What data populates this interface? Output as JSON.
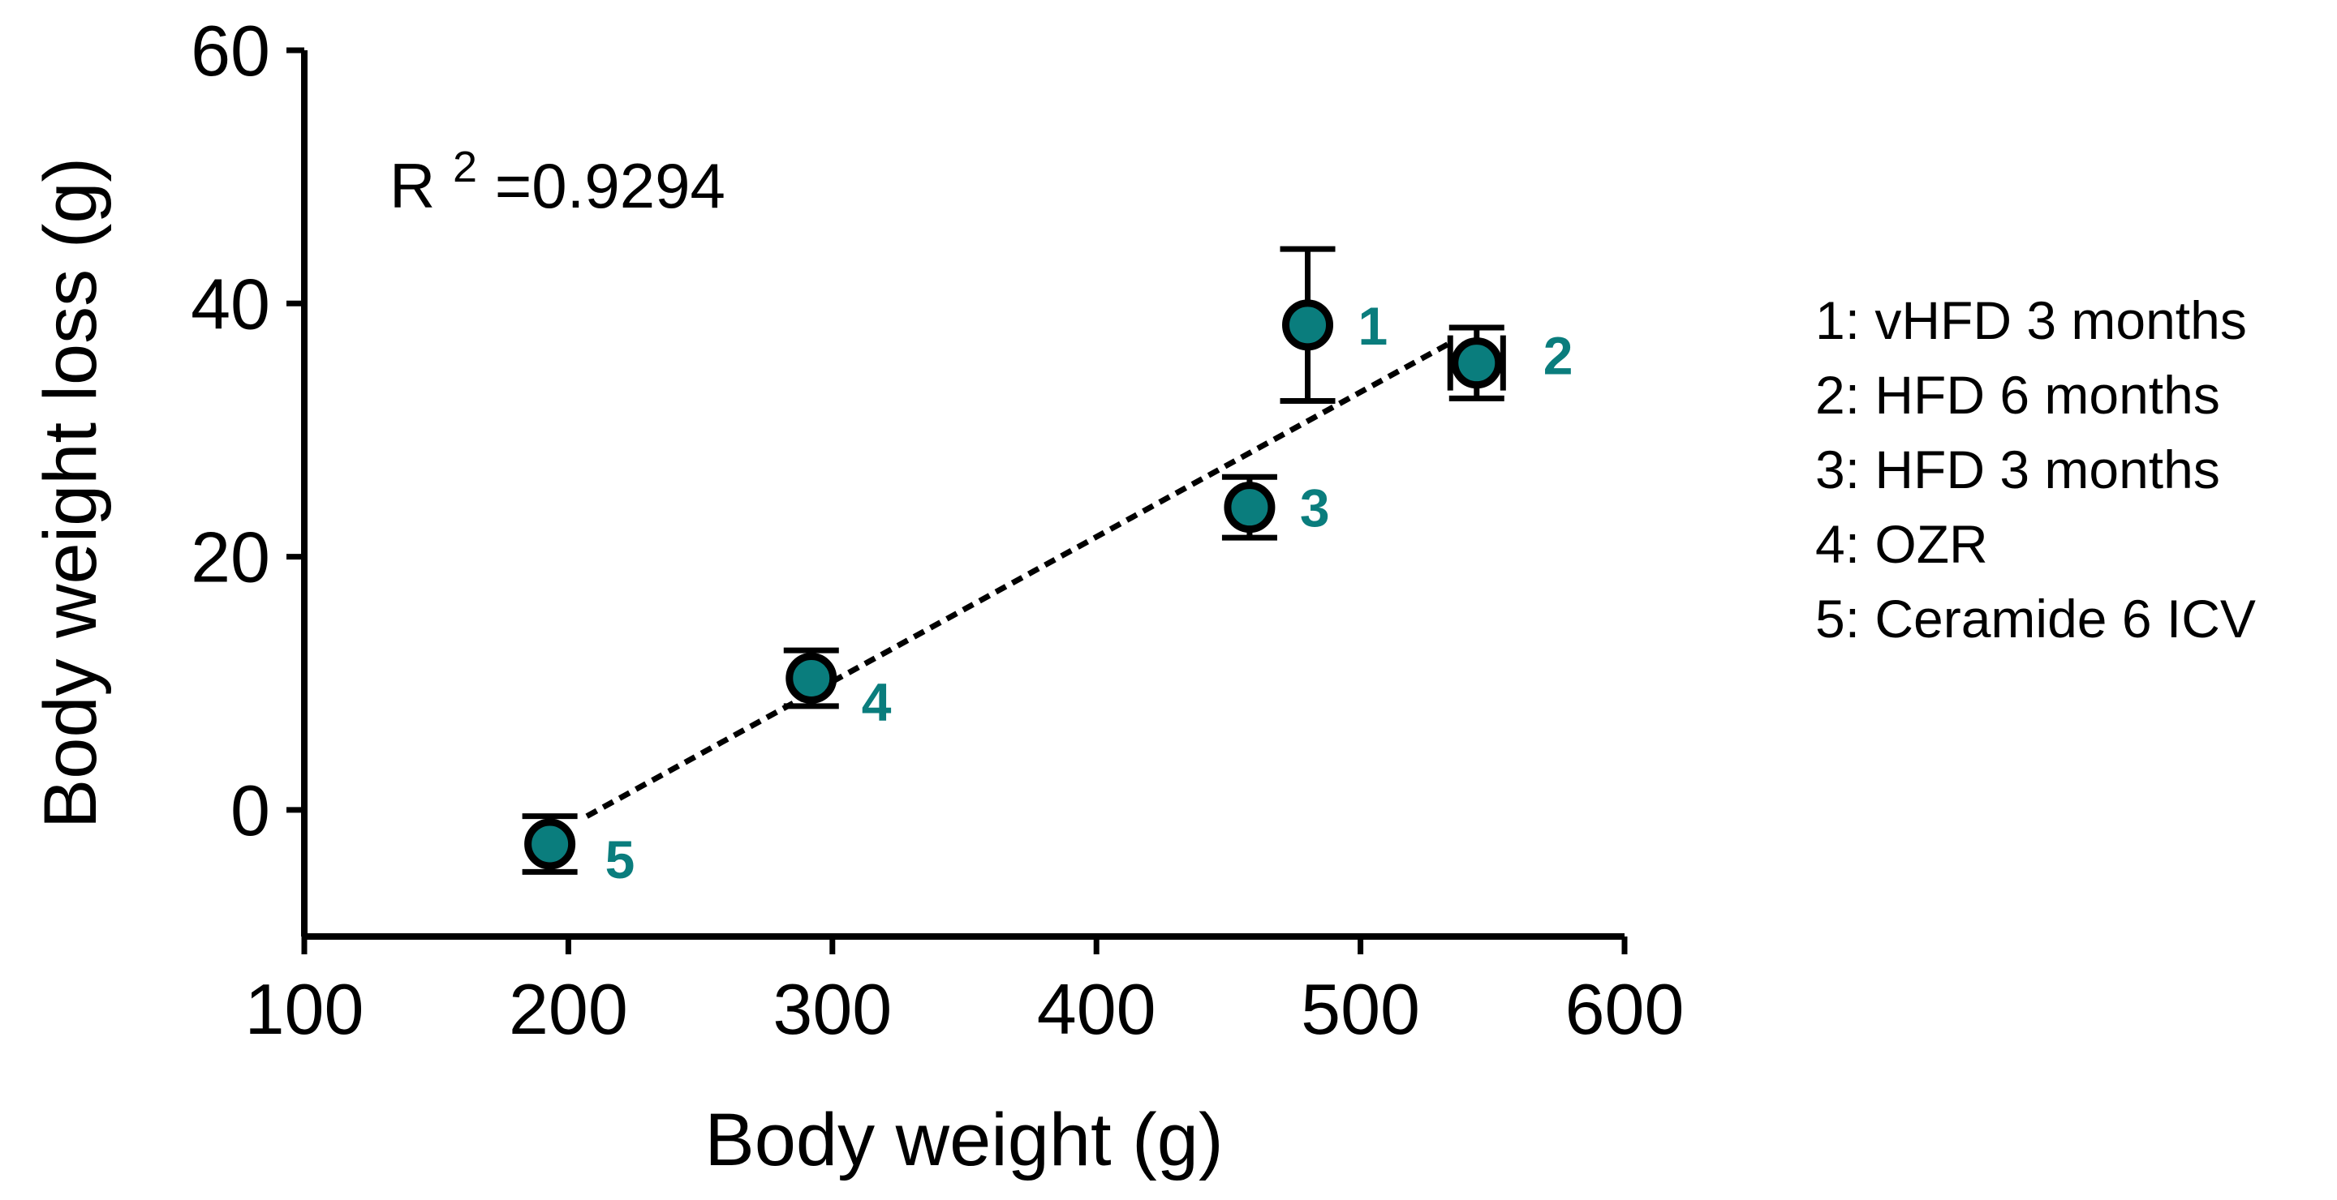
{
  "chart_data": {
    "type": "scatter",
    "xlabel": "Body weight (g)",
    "ylabel": "Body weight loss (g)",
    "xlim": [
      100,
      600
    ],
    "ylim": [
      -10,
      60
    ],
    "x_ticks": [
      100,
      200,
      300,
      400,
      500,
      600
    ],
    "y_ticks": [
      0,
      20,
      40,
      60
    ],
    "grid": false,
    "annotation": {
      "prefix": "R",
      "superscript": "2",
      "value": "=0.9294"
    },
    "points": [
      {
        "label": "1",
        "x": 480,
        "y": 38.3,
        "y_err": 6.0,
        "x_err": 0
      },
      {
        "label": "2",
        "x": 544,
        "y": 35.3,
        "y_err": 2.8,
        "x_err": 10
      },
      {
        "label": "3",
        "x": 458,
        "y": 23.9,
        "y_err": 2.4,
        "x_err": 0
      },
      {
        "label": "4",
        "x": 292,
        "y": 10.4,
        "y_err": 2.2,
        "x_err": 0
      },
      {
        "label": "5",
        "x": 193,
        "y": -2.7,
        "y_err": 2.2,
        "x_err": 0
      }
    ],
    "fit_line": {
      "x_start": 207,
      "y_start": -0.5,
      "x_end": 535,
      "y_end": 37.0
    },
    "legend": [
      "1: vHFD 3 months",
      "2: HFD 6 months",
      "3: HFD 3 months",
      "4: OZR",
      "5: Ceramide 6 ICV"
    ],
    "legend_position": "right",
    "colors": {
      "marker_fill": "#0a7d7d",
      "marker_edge": "#000000",
      "point_label": "#0a7d7d",
      "axis": "#000000"
    }
  }
}
